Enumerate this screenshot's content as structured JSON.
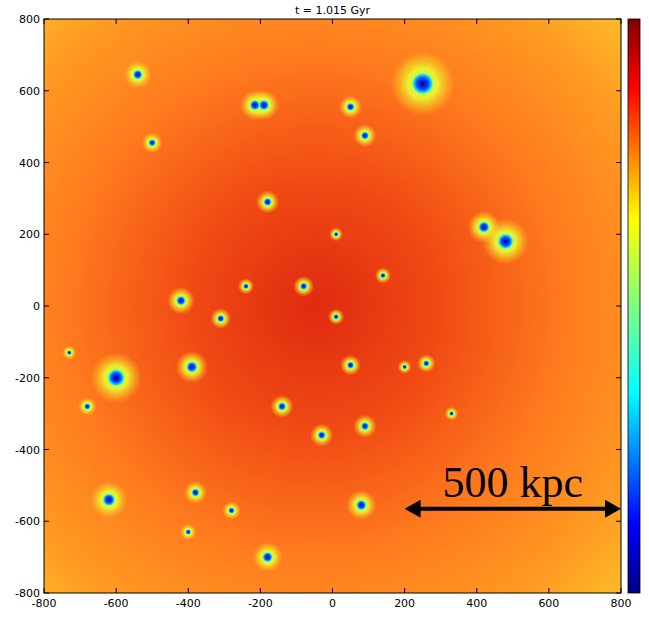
{
  "chart_data": {
    "type": "scatter",
    "title": "t = 1.015 Gyr",
    "x": [
      -540,
      -215,
      -190,
      50,
      90,
      250,
      -500,
      -180,
      420,
      480,
      -80,
      10,
      -420,
      -310,
      -240,
      10,
      140,
      -600,
      -390,
      -680,
      -140,
      50,
      260,
      -30,
      90,
      -380,
      -620,
      -400,
      80,
      -280,
      -180,
      330,
      200,
      -730
    ],
    "y": [
      645,
      560,
      560,
      555,
      475,
      620,
      455,
      290,
      220,
      180,
      55,
      200,
      15,
      -35,
      55,
      -30,
      85,
      -200,
      -170,
      -280,
      -280,
      -165,
      -160,
      -360,
      -335,
      -520,
      -540,
      -630,
      -555,
      -570,
      -700,
      -300,
      -170,
      -130
    ],
    "sizes": [
      12,
      13,
      13,
      10,
      10,
      28,
      9,
      10,
      14,
      20,
      9,
      6,
      12,
      9,
      7,
      7,
      7,
      22,
      14,
      8,
      10,
      9,
      8,
      10,
      10,
      10,
      16,
      7,
      13,
      8,
      13,
      6,
      6,
      6
    ],
    "color": "#0000c8",
    "xlim": [
      -800,
      800
    ],
    "ylim": [
      -800,
      800
    ],
    "xticks": [
      -800,
      -600,
      -400,
      -200,
      0,
      200,
      400,
      600,
      800
    ],
    "yticks": [
      -800,
      -600,
      -400,
      -200,
      0,
      200,
      400,
      600,
      800
    ],
    "scale_bar": {
      "label": "500 kpc",
      "x": [
        200,
        800
      ],
      "y": -565
    }
  }
}
